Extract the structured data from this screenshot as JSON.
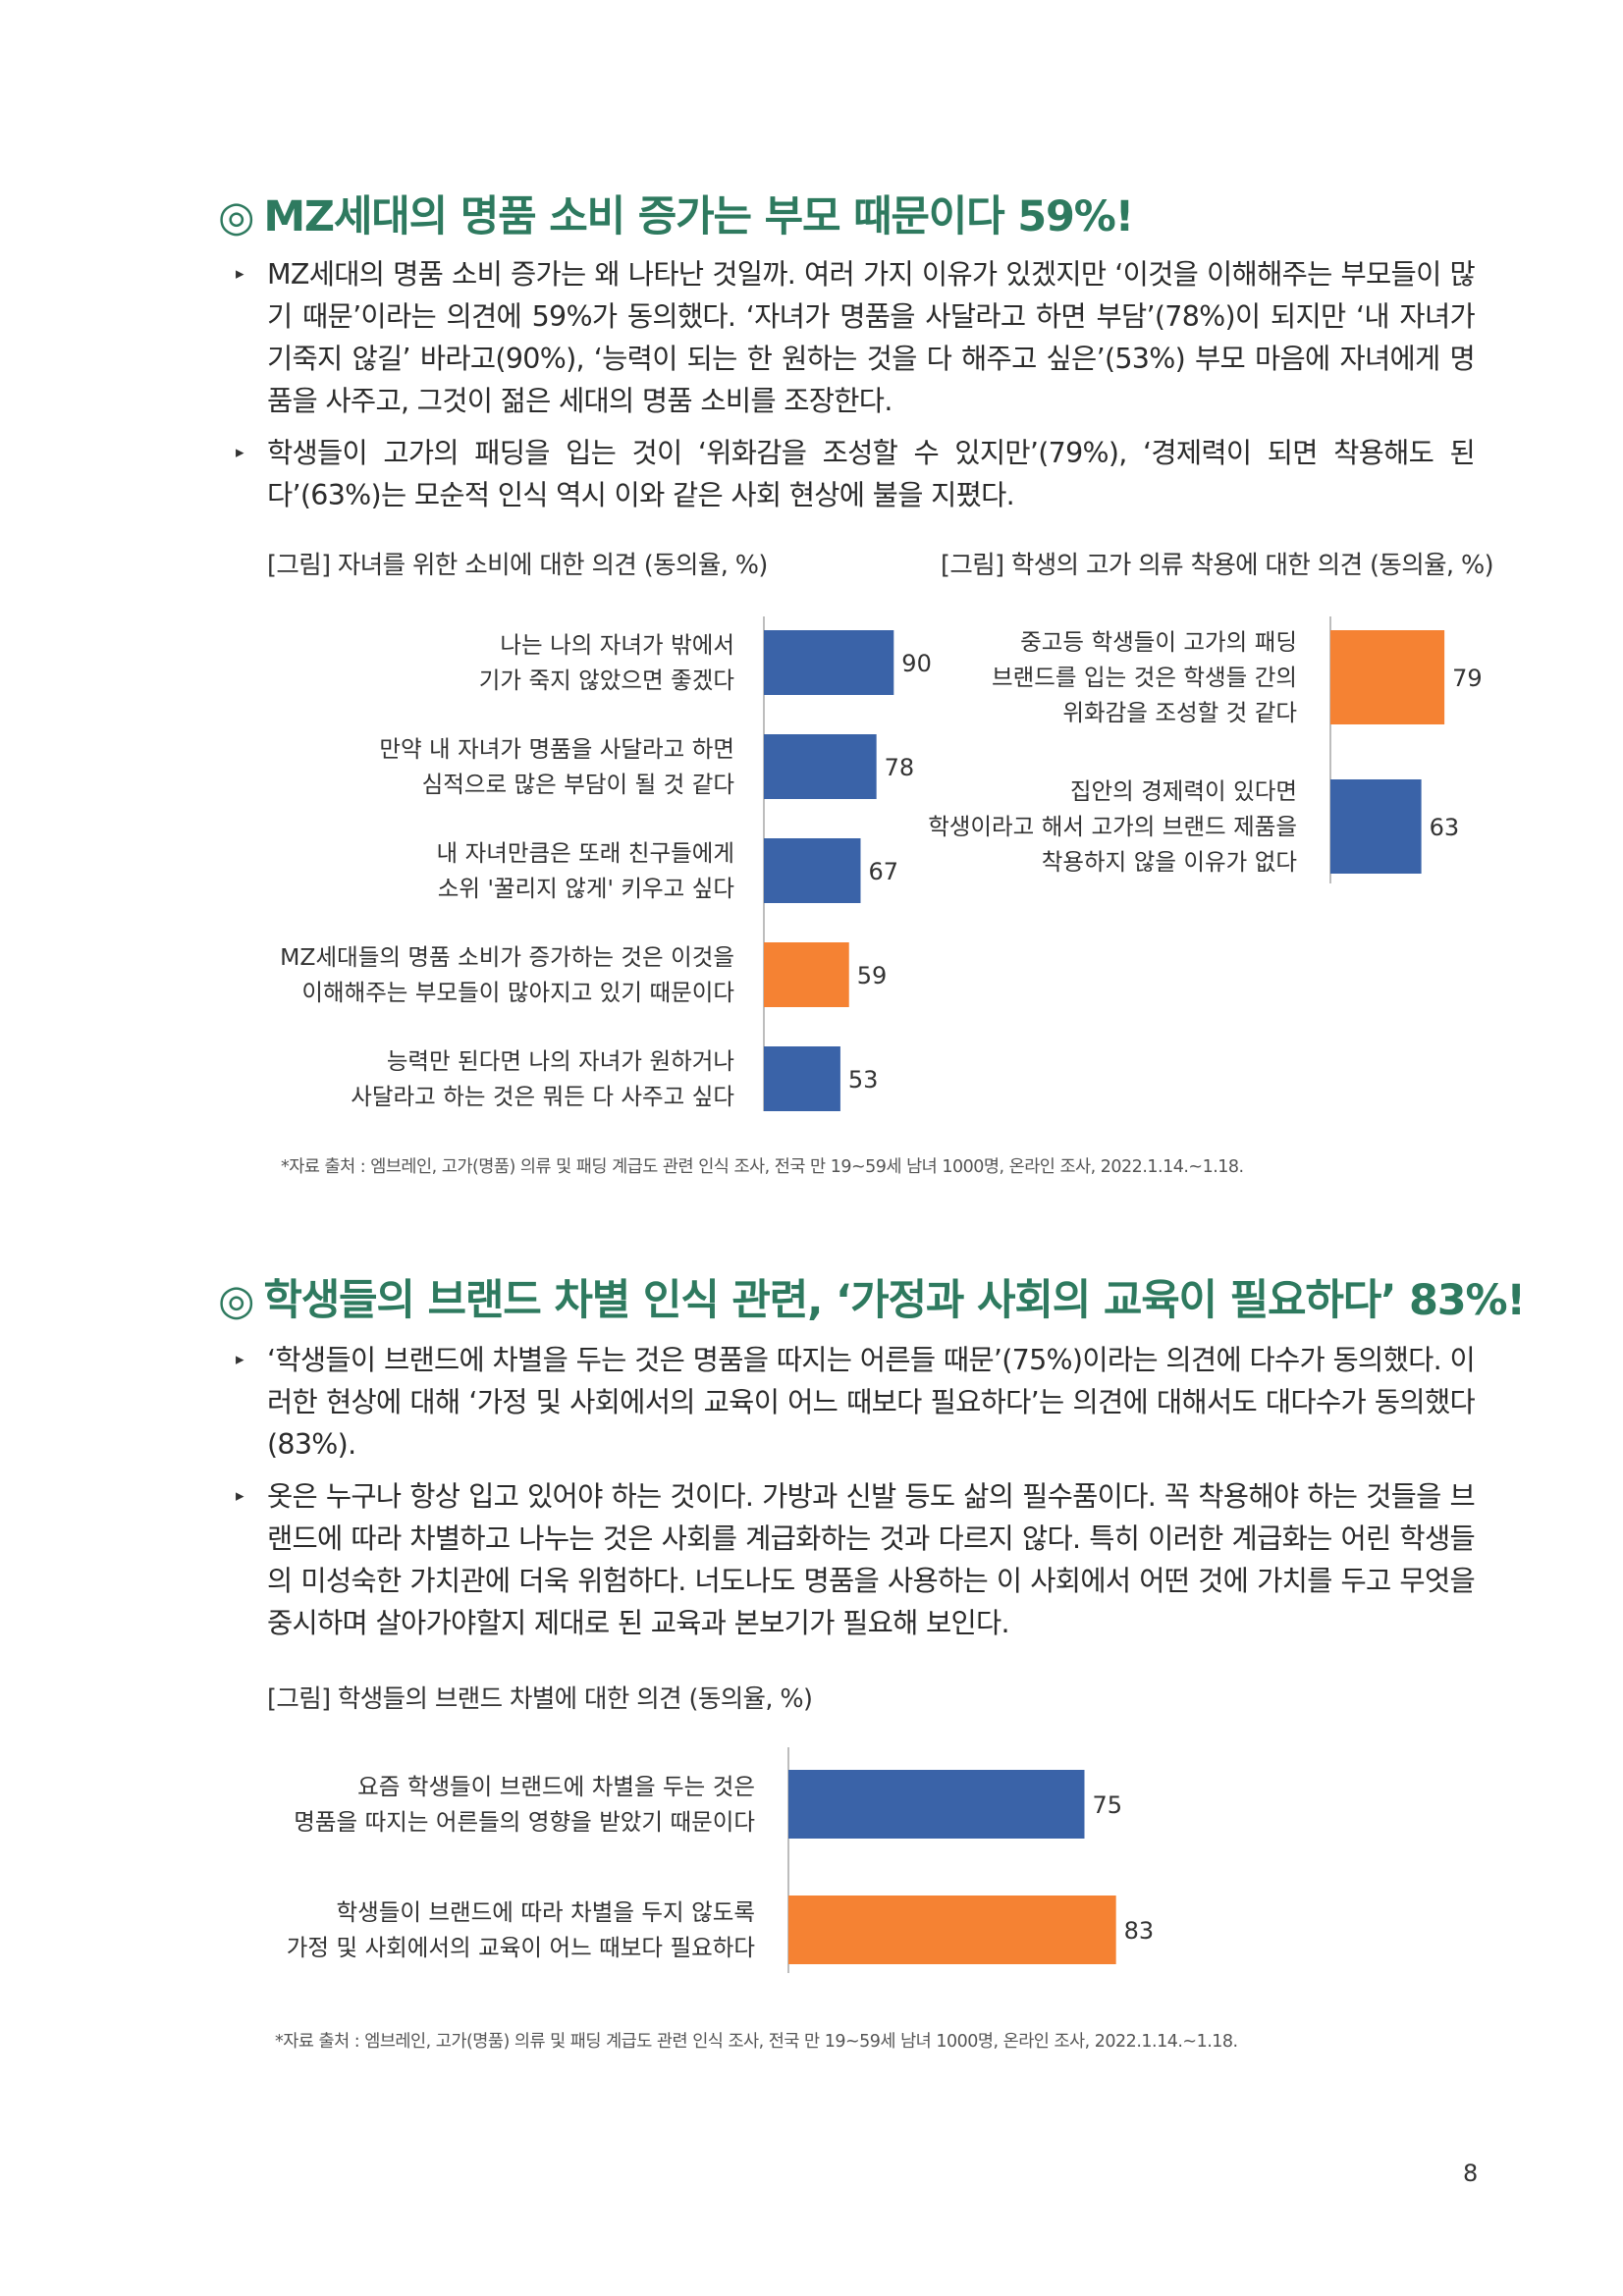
{
  "section1": {
    "mark": "◎",
    "title": "MZ세대의 명품 소비 증가는 부모 때문이다 59%!",
    "bullets": [
      "MZ세대의 명품 소비 증가는 왜 나타난 것일까. 여러 가지 이유가 있겠지만 ‘이것을 이해해주는 부모들이 많기 때문’이라는 의견에 59%가 동의했다. ‘자녀가 명품을 사달라고 하면 부담’(78%)이 되지만 ‘내 자녀가 기죽지 않길’ 바라고(90%), ‘능력이 되는 한 원하는 것을 다 해주고 싶은’(53%) 부모 마음에 자녀에게 명품을 사주고, 그것이 젊은 세대의 명품 소비를 조장한다.",
      "학생들이 고가의 패딩을 입는 것이 ‘위화감을 조성할 수 있지만’(79%), ‘경제력이 되면 착용해도 된다’(63%)는 모순적 인식 역시 이와 같은 사회 현상에 불을 지폈다."
    ],
    "source": "*자료 출처 : 엠브레인, 고가(명품) 의류 및 패딩 계급도 관련 인식 조사, 전국 만 19~59세 남녀 1000명, 온라인 조사, 2022.1.14.~1.18."
  },
  "section2": {
    "mark": "◎",
    "title": "학생들의 브랜드 차별 인식 관련, ‘가정과 사회의 교육이 필요하다’ 83%!",
    "bullets": [
      "‘학생들이 브랜드에 차별을 두는 것은 명품을 따지는 어른들 때문’(75%)이라는 의견에 다수가 동의했다. 이러한 현상에 대해 ‘가정 및 사회에서의 교육이 어느 때보다 필요하다’는 의견에 대해서도 대다수가 동의했다(83%).",
      "옷은 누구나 항상 입고 있어야 하는 것이다. 가방과 신발 등도 삶의 필수품이다. 꼭 착용해야 하는 것들을 브랜드에 따라 차별하고 나누는 것은 사회를 계급화하는 것과 다르지 않다. 특히 이러한 계급화는 어린 학생들의 미성숙한 가치관에 더욱 위험하다. 너도나도 명품을 사용하는 이 사회에서 어떤 것에 가치를 두고 무엇을 중시하며 살아가야할지 제대로 된 교육과 본보기가 필요해 보인다."
    ],
    "source": "*자료 출처 : 엠브레인, 고가(명품) 의류 및 패딩 계급도 관련 인식 조사, 전국 만 19~59세 남녀 1000명, 온라인 조사, 2022.1.14.~1.18."
  },
  "page_number": "8",
  "colors": {
    "heading": "#2e7a5f",
    "blue": "#3a63a8",
    "orange": "#f58233"
  },
  "chart_data": [
    {
      "type": "bar",
      "orientation": "horizontal",
      "title": "[그림] 자녀를 위한 소비에 대한 의견 (동의율, %)",
      "categories": [
        [
          "나는 나의 자녀가 밖에서",
          "기가 죽지  않았으면 좋겠다"
        ],
        [
          "만약 내 자녀가 명품을 사달라고 하면",
          "심적으로 많은 부담이 될 것 같다"
        ],
        [
          "내 자녀만큼은 또래 친구들에게",
          "소위 '꿀리지 않게' 키우고 싶다"
        ],
        [
          "MZ세대들의 명품 소비가 증가하는 것은 이것을",
          "이해해주는 부모들이 많아지고 있기 때문이다"
        ],
        [
          "능력만 된다면 나의 자녀가 원하거나",
          "사달라고 하는 것은 뭐든 다 사주고  싶다"
        ]
      ],
      "values": [
        90,
        78,
        67,
        59,
        53
      ],
      "colors": [
        "blue",
        "blue",
        "blue",
        "orange",
        "blue"
      ],
      "xlim": [
        0,
        100
      ]
    },
    {
      "type": "bar",
      "orientation": "horizontal",
      "title": "[그림] 학생의 고가 의류 착용에 대한 의견 (동의율, %)",
      "categories": [
        [
          "중고등 학생들이 고가의 패딩",
          "브랜드를 입는 것은 학생들 간의",
          "위화감을 조성할 것 같다"
        ],
        [
          "집안의 경제력이 있다면",
          "학생이라고 해서 고가의 브랜드 제품을",
          "착용하지 않을 이유가 없다"
        ]
      ],
      "values": [
        79,
        63
      ],
      "colors": [
        "orange",
        "blue"
      ],
      "xlim": [
        0,
        100
      ]
    },
    {
      "type": "bar",
      "orientation": "horizontal",
      "title": "[그림] 학생들의 브랜드 차별에 대한 의견 (동의율, %)",
      "categories": [
        [
          "요즘 학생들이 브랜드에 차별을 두는 것은",
          "명품을 따지는 어른들의 영향을 받았기 때문이다"
        ],
        [
          "학생들이 브랜드에 따라 차별을 두지 않도록",
          "가정 및 사회에서의 교육이 어느  때보다 필요하다"
        ]
      ],
      "values": [
        75,
        83
      ],
      "colors": [
        "blue",
        "orange"
      ],
      "xlim": [
        0,
        100
      ]
    }
  ]
}
